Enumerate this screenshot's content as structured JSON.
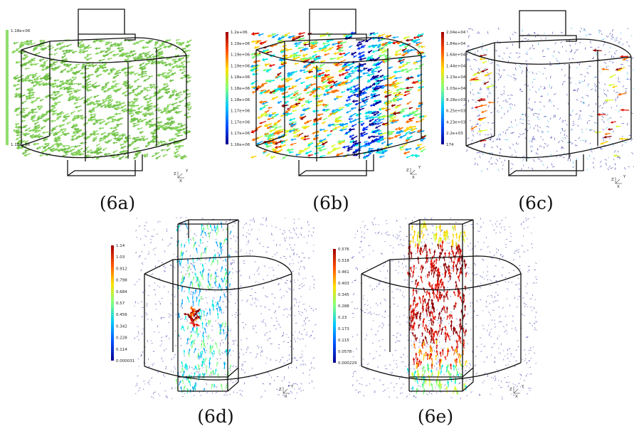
{
  "panels": [
    {
      "id": "6a",
      "caption": "(6a)",
      "colorbar": {
        "colors": [
          "#8fdf6a",
          "#8fdf6a"
        ],
        "labels": [
          "1.18e+06",
          "1.18e+06"
        ]
      },
      "field": "uniform-green"
    },
    {
      "id": "6b",
      "caption": "(6b)",
      "colorbar": {
        "colors": [
          "#08008f",
          "#0050ff",
          "#00c8ff",
          "#80ff80",
          "#ffe000",
          "#ff5000",
          "#a00000"
        ],
        "labels": [
          "1.2e+06",
          "1.19e+06",
          "1.19e+06",
          "1.19e+06",
          "1.18e+06",
          "1.18e+06",
          "1.18e+06",
          "1.17e+06",
          "1.17e+06",
          "1.17e+06",
          "1.16e+06"
        ]
      },
      "field": "mixed"
    },
    {
      "id": "6c",
      "caption": "(6c)",
      "colorbar": {
        "colors": [
          "#08008f",
          "#0050ff",
          "#00c8ff",
          "#80ff80",
          "#ffe000",
          "#ff5000",
          "#a00000"
        ],
        "labels": [
          "2.04e+04",
          "1.84e+04",
          "1.64e+04",
          "1.44e+04",
          "1.23e+04",
          "1.03e+04",
          "8.28e+03",
          "6.25e+03",
          "4.23e+03",
          "2.2e+03",
          "174"
        ]
      },
      "field": "sparse"
    },
    {
      "id": "6d",
      "caption": "(6d)",
      "colorbar": {
        "colors": [
          "#08008f",
          "#0050ff",
          "#00c8ff",
          "#80ff80",
          "#ffe000",
          "#ff5000",
          "#a00000"
        ],
        "labels": [
          "1.14",
          "1.03",
          "0.912",
          "0.798",
          "0.684",
          "0.57",
          "0.456",
          "0.342",
          "0.228",
          "0.114",
          "0.000031"
        ]
      },
      "field": "column-cyan"
    },
    {
      "id": "6e",
      "caption": "(6e)",
      "colorbar": {
        "colors": [
          "#08008f",
          "#0050ff",
          "#00c8ff",
          "#80ff80",
          "#ffe000",
          "#ff5000",
          "#a00000"
        ],
        "labels": [
          "0.576",
          "0.518",
          "0.461",
          "0.403",
          "0.345",
          "0.288",
          "0.23",
          "0.173",
          "0.115",
          "0.0578",
          "0.000229"
        ]
      },
      "field": "column-red"
    }
  ],
  "axes_triad": {
    "labels": [
      "Y",
      "Z",
      "X"
    ]
  }
}
